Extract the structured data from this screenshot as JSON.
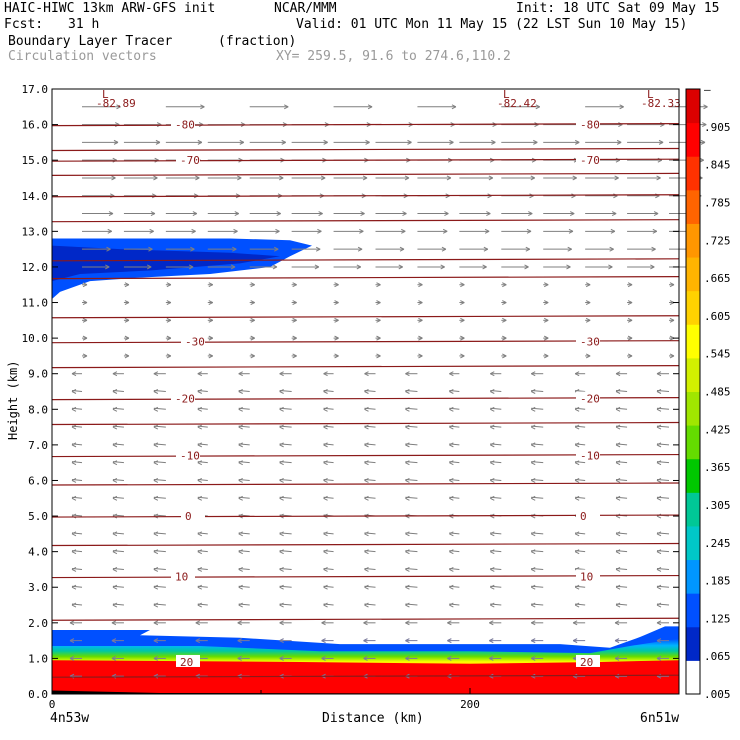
{
  "header": {
    "model": "HAIC-HIWC 13km ARW-GFS init",
    "org": "NCAR/MMM",
    "init": "Init: 18 UTC Sat 09 May 15",
    "fcst_label": "Fcst:",
    "fcst_value": "31 h",
    "valid": "Valid: 01 UTC Mon 11 May 15 (22 LST Sun 10 May 15)",
    "field": "Boundary Layer Tracer",
    "units": "(fraction)",
    "vectors": "Circulation vectors",
    "xy": "XY= 259.5, 91.6 to 274.6,110.2"
  },
  "chart_data": {
    "type": "heatmap",
    "ylabel": "Height (km)",
    "xlabel": "Distance (km)",
    "x_start_label": "4n53w",
    "x_end_label": "6n51w",
    "xlim": [
      0,
      300
    ],
    "ylim": [
      0,
      17
    ],
    "y_ticks": [
      "0.0",
      "1.0",
      "2.0",
      "3.0",
      "4.0",
      "5.0",
      "6.0",
      "7.0",
      "8.0",
      "9.0",
      "10.0",
      "11.0",
      "12.0",
      "13.0",
      "14.0",
      "15.0",
      "16.0",
      "17.0"
    ],
    "x_ticks": [
      "0",
      "200"
    ],
    "colorbar_labels": [
      ".005",
      ".065",
      ".125",
      ".185",
      ".245",
      ".305",
      ".365",
      ".425",
      ".485",
      ".545",
      ".605",
      ".665",
      ".725",
      ".785",
      ".845",
      ".905",
      "–"
    ],
    "colorbar_colors": [
      "#ffffff",
      "#0028c8",
      "#0050ff",
      "#0096ff",
      "#00c8c8",
      "#00c896",
      "#00c800",
      "#64dc00",
      "#a0e600",
      "#d2f000",
      "#ffff00",
      "#ffd200",
      "#ffb400",
      "#ff9600",
      "#ff6400",
      "#ff3200",
      "#ff0000",
      "#dc0000"
    ],
    "temperature_contours": [
      {
        "label": "-80",
        "y": 16.0
      },
      {
        "label": "-70",
        "y": 15.0
      },
      {
        "label": "-30",
        "y": 9.9
      },
      {
        "label": "-20",
        "y": 8.3
      },
      {
        "label": "-10",
        "y": 6.7
      },
      {
        "label": "0",
        "y": 5.0
      },
      {
        "label": "10",
        "y": 3.3
      },
      {
        "label": "20",
        "y": 0.9
      }
    ],
    "minimum_labels": [
      {
        "letter": "L",
        "value": "-82.89"
      },
      {
        "letter": "L",
        "value": "-82.42"
      },
      {
        "letter": "L",
        "value": "-82.33"
      }
    ]
  }
}
